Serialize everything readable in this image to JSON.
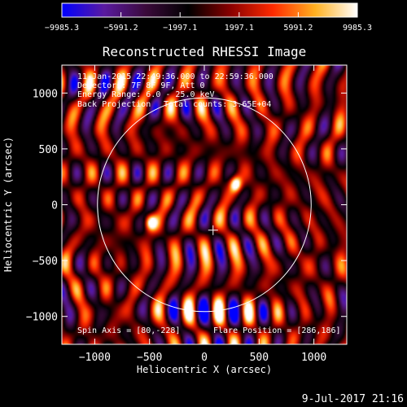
{
  "chart_data": {
    "type": "heatmap",
    "title": "Reconstructed RHESSI Image",
    "xlabel": "Heliocentric X (arcsec)",
    "ylabel": "Heliocentric Y (arcsec)",
    "xlim": [
      -1300,
      1300
    ],
    "ylim": [
      -1250,
      1250
    ],
    "xticks": [
      -1000,
      -500,
      0,
      500,
      1000
    ],
    "yticks": [
      -1000,
      -500,
      0,
      500,
      1000
    ],
    "xtick_labels": [
      "−1000",
      "−500",
      "0",
      "500",
      "1000"
    ],
    "ytick_labels": [
      "−1000",
      "−500",
      "0",
      "500",
      "1000"
    ],
    "colorbar": {
      "min": -9985.3,
      "max": 9985.3,
      "tick_values": [
        -9985.3,
        -5991.2,
        -1997.1,
        1997.1,
        5991.2,
        9985.3
      ],
      "tick_labels": [
        "−9985.3",
        "−5991.2",
        "−1997.1",
        "1997.1",
        "5991.2",
        "9985.3"
      ],
      "colors": [
        "#0000ff",
        "#5a1aa0",
        "#3a0a3a",
        "#000000",
        "#8a0000",
        "#ff2a00",
        "#ffb020",
        "#ffffff"
      ]
    },
    "solar_disk_radius_arcsec": 975,
    "spin_axis": [
      80,
      -228
    ],
    "flare_position": [
      286,
      186
    ],
    "sources": [
      {
        "x": 286,
        "y": 186,
        "value": 9985.3
      },
      {
        "x": -490,
        "y": -160,
        "value": 8400
      }
    ],
    "annotations": [
      "11-Jan-2015 22:49:36.000 to 22:59:36.000",
      "Detectors: 7F 8F 9F, Att 0",
      "Energy Range: 6.0 - 25.0 keV",
      "Back Projection",
      "Total counts: 3.65E+04",
      "Spin Axis = [80,-228]",
      "Flare Position = [286,186]"
    ]
  },
  "footer_date": "9-Jul-2017 21:16"
}
